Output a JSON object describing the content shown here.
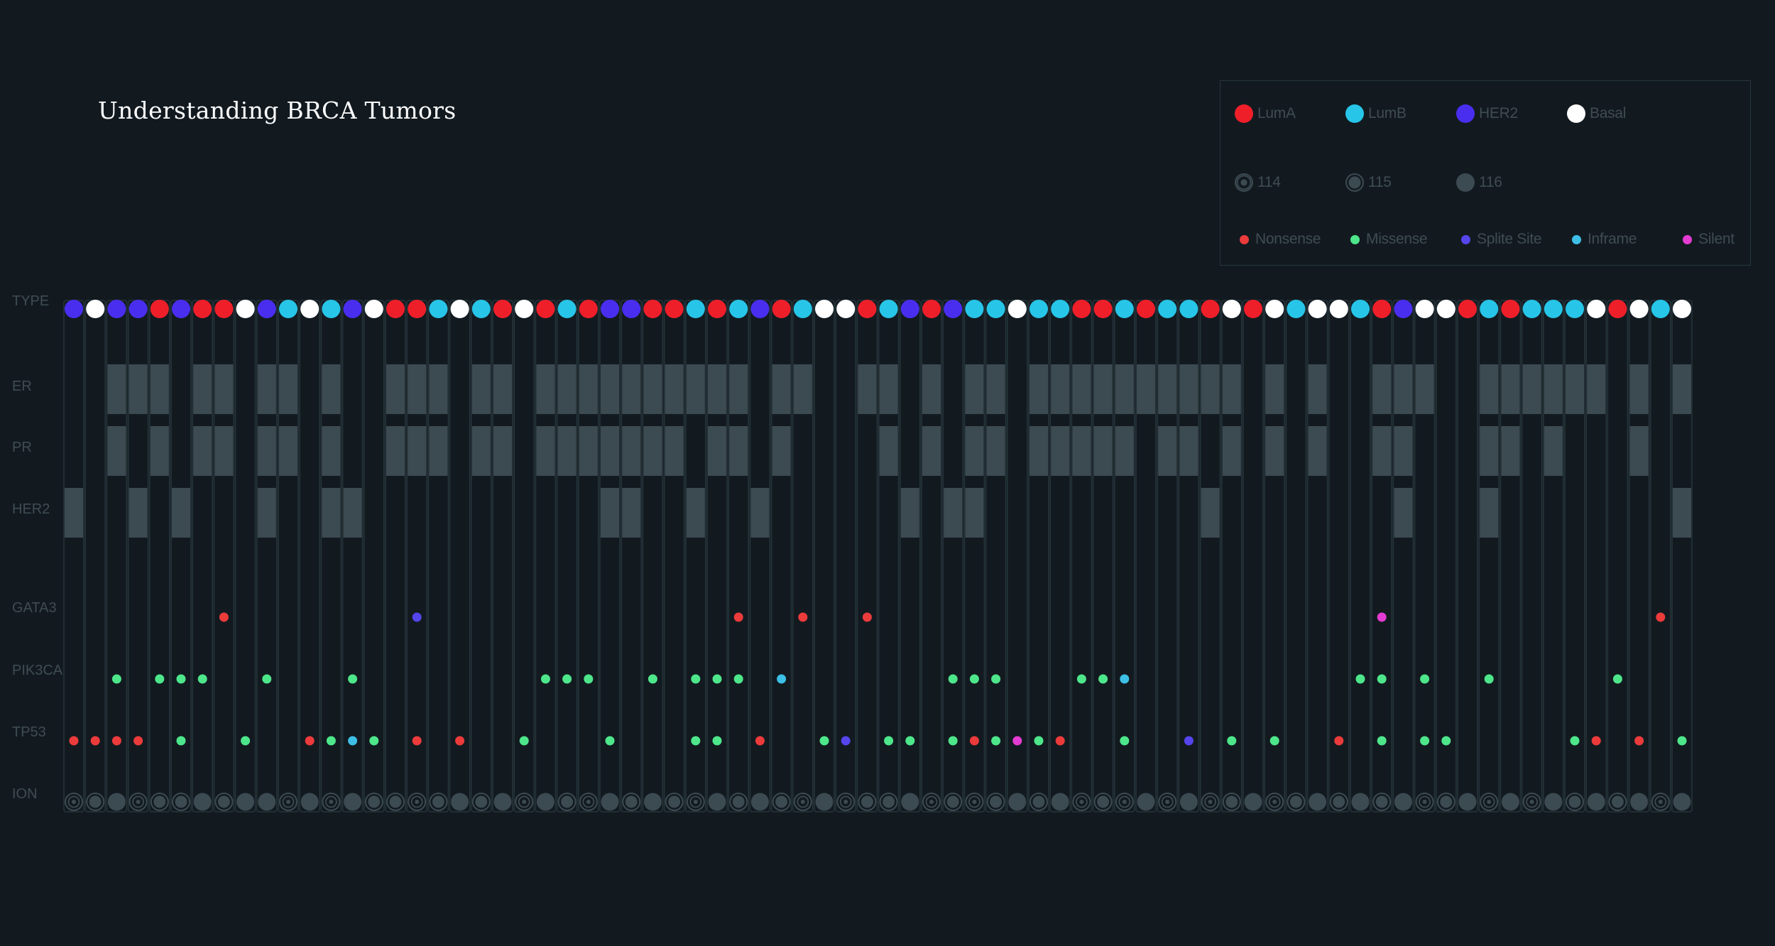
{
  "chart_data": {
    "type": "scatter",
    "title": "Understanding BRCA Tumors",
    "row_labels": [
      "TYPE",
      "ER",
      "PR",
      "HER2",
      "GATA3",
      "PIK3CA",
      "TP53",
      "ION"
    ],
    "legend": {
      "type": [
        {
          "key": "LumA",
          "label": "LumA",
          "color": "#ef1f2a"
        },
        {
          "key": "LumB",
          "label": "LumB",
          "color": "#27c5e8"
        },
        {
          "key": "HER2",
          "label": "HER2",
          "color": "#4a2ef0"
        },
        {
          "key": "Basal",
          "label": "Basal",
          "color": "#ffffff"
        }
      ],
      "ion": [
        {
          "key": "114",
          "label": "114"
        },
        {
          "key": "115",
          "label": "115"
        },
        {
          "key": "116",
          "label": "116"
        }
      ],
      "mutation": [
        {
          "key": "Nonsense",
          "label": "Nonsense",
          "color": "#ec3b3b"
        },
        {
          "key": "Missense",
          "label": "Missense",
          "color": "#4ee68a"
        },
        {
          "key": "Splite Site",
          "label": "Splite Site",
          "color": "#5545ec"
        },
        {
          "key": "Inframe",
          "label": "Inframe",
          "color": "#3dbfe6"
        },
        {
          "key": "Silent",
          "label": "Silent",
          "color": "#e43cd2"
        }
      ]
    },
    "samples": {
      "type": [
        "HER2",
        "Basal",
        "HER2",
        "HER2",
        "LumA",
        "HER2",
        "LumA",
        "LumA",
        "Basal",
        "HER2",
        "LumB",
        "Basal",
        "LumB",
        "HER2",
        "Basal",
        "LumA",
        "LumA",
        "LumB",
        "Basal",
        "LumB",
        "LumA",
        "Basal",
        "LumA",
        "LumB",
        "LumA",
        "HER2",
        "HER2",
        "LumA",
        "LumA",
        "LumB",
        "LumA",
        "LumB",
        "HER2",
        "LumA",
        "LumB",
        "Basal",
        "Basal",
        "LumA",
        "LumB",
        "HER2",
        "LumA",
        "HER2",
        "LumB",
        "LumB",
        "Basal",
        "LumB",
        "LumB",
        "LumA",
        "LumA",
        "LumB",
        "LumA",
        "LumB",
        "LumB",
        "LumA",
        "Basal",
        "LumA",
        "Basal",
        "LumB",
        "Basal",
        "Basal",
        "LumB",
        "LumA",
        "HER2",
        "Basal",
        "Basal",
        "LumA",
        "LumB",
        "LumA",
        "LumB",
        "LumB",
        "LumB",
        "Basal",
        "LumA",
        "Basal",
        "LumB",
        "Basal"
      ],
      "ER": [
        0,
        0,
        1,
        1,
        1,
        0,
        1,
        1,
        0,
        1,
        1,
        0,
        1,
        0,
        0,
        1,
        1,
        1,
        0,
        1,
        1,
        0,
        1,
        1,
        1,
        1,
        1,
        1,
        1,
        1,
        1,
        1,
        0,
        1,
        1,
        0,
        0,
        1,
        1,
        0,
        1,
        0,
        1,
        1,
        0,
        1,
        1,
        1,
        1,
        1,
        1,
        1,
        1,
        1,
        1,
        0,
        1,
        0,
        1,
        0,
        0,
        1,
        1,
        1,
        0,
        0,
        1,
        1,
        1,
        1,
        1,
        1,
        0,
        1,
        0,
        1
      ],
      "PR": [
        0,
        0,
        1,
        0,
        1,
        0,
        1,
        1,
        0,
        1,
        1,
        0,
        1,
        0,
        0,
        1,
        1,
        1,
        0,
        1,
        1,
        0,
        1,
        1,
        1,
        1,
        1,
        1,
        1,
        0,
        1,
        1,
        0,
        1,
        0,
        0,
        0,
        0,
        1,
        0,
        1,
        0,
        1,
        1,
        0,
        1,
        1,
        1,
        1,
        1,
        0,
        1,
        1,
        0,
        1,
        0,
        1,
        0,
        1,
        0,
        0,
        1,
        1,
        0,
        0,
        0,
        1,
        1,
        0,
        1,
        0,
        0,
        0,
        1,
        0,
        0
      ],
      "HER2": [
        1,
        0,
        0,
        1,
        0,
        1,
        0,
        0,
        0,
        1,
        0,
        0,
        1,
        1,
        0,
        0,
        0,
        0,
        0,
        0,
        0,
        0,
        0,
        0,
        0,
        1,
        1,
        0,
        0,
        1,
        0,
        0,
        1,
        0,
        0,
        0,
        0,
        0,
        0,
        1,
        0,
        1,
        1,
        0,
        0,
        0,
        0,
        0,
        0,
        0,
        0,
        0,
        0,
        1,
        0,
        0,
        0,
        0,
        0,
        0,
        0,
        0,
        1,
        0,
        0,
        0,
        1,
        0,
        0,
        0,
        0,
        0,
        0,
        0,
        0,
        1
      ],
      "GATA3": {
        "7": "Nonsense",
        "16": "Splite Site",
        "31": "Nonsense",
        "34": "Nonsense",
        "37": "Nonsense",
        "61": "Silent",
        "74": "Nonsense"
      },
      "PIK3CA": {
        "2": "Missense",
        "4": "Missense",
        "5": "Missense",
        "6": "Missense",
        "9": "Missense",
        "13": "Missense",
        "22": "Missense",
        "23": "Missense",
        "24": "Missense",
        "27": "Missense",
        "29": "Missense",
        "30": "Missense",
        "31": "Missense",
        "33": "Inframe",
        "41": "Missense",
        "42": "Missense",
        "43": "Missense",
        "47": "Missense",
        "48": "Missense",
        "49": "Inframe",
        "60": "Missense",
        "61": "Missense",
        "63": "Missense",
        "66": "Missense",
        "72": "Missense"
      },
      "TP53": {
        "0": "Nonsense",
        "1": "Nonsense",
        "2": "Nonsense",
        "3": "Nonsense",
        "5": "Missense",
        "8": "Missense",
        "11": "Nonsense",
        "12": "Missense",
        "13": "Inframe",
        "14": "Missense",
        "16": "Nonsense",
        "18": "Nonsense",
        "21": "Missense",
        "25": "Missense",
        "29": "Missense",
        "30": "Missense",
        "32": "Nonsense",
        "35": "Missense",
        "36": "Splite Site",
        "38": "Missense",
        "39": "Missense",
        "41": "Missense",
        "42": "Nonsense",
        "43": "Missense",
        "44": "Silent",
        "45": "Missense",
        "46": "Nonsense",
        "49": "Missense",
        "52": "Splite Site",
        "54": "Missense",
        "56": "Missense",
        "59": "Nonsense",
        "61": "Missense",
        "63": "Missense",
        "64": "Missense",
        "70": "Missense",
        "71": "Nonsense",
        "73": "Nonsense",
        "75": "Missense"
      },
      "ION": [
        "114",
        "115",
        "116",
        "114",
        "115",
        "115",
        "116",
        "115",
        "116",
        "116",
        "114",
        "116",
        "114",
        "116",
        "115",
        "115",
        "114",
        "115",
        "116",
        "115",
        "116",
        "114",
        "116",
        "115",
        "114",
        "116",
        "115",
        "116",
        "115",
        "114",
        "116",
        "115",
        "116",
        "115",
        "114",
        "116",
        "114",
        "115",
        "115",
        "116",
        "114",
        "115",
        "114",
        "115",
        "116",
        "115",
        "116",
        "114",
        "115",
        "114",
        "116",
        "114",
        "116",
        "114",
        "115",
        "116",
        "114",
        "115",
        "116",
        "115",
        "116",
        "115",
        "116",
        "114",
        "115",
        "116",
        "114",
        "116",
        "114",
        "116",
        "115",
        "116",
        "115",
        "116",
        "114",
        "116"
      ]
    },
    "colors": {
      "background": "#121a20",
      "label": "#3f4c51",
      "cell": "#3c4a51",
      "column": "#26353a"
    }
  }
}
